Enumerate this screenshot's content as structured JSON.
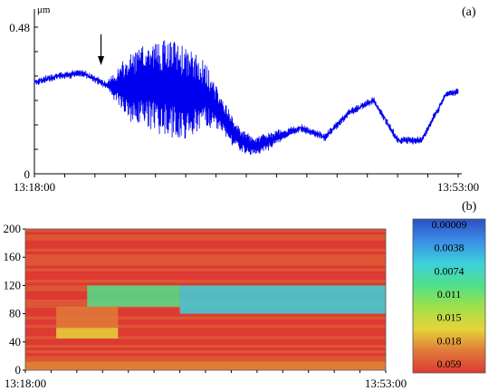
{
  "chart_data": [
    {
      "panel": "(a)",
      "type": "line",
      "ylabel": "μm",
      "yticks": [
        "0",
        "0.48"
      ],
      "ylim": [
        0,
        0.48
      ],
      "xticks": [
        "13:18:00",
        "13:53:00"
      ],
      "arrow_time": "13:23:30",
      "series": [
        {
          "color": "#0000ee",
          "envelope": {
            "t": [
              "13:18:00",
              "13:20:00",
              "13:22:00",
              "13:24:00",
              "13:26:00",
              "13:27:30",
              "13:29:00",
              "13:30:00",
              "13:31:00",
              "13:32:00",
              "13:33:00",
              "13:34:00",
              "13:35:00",
              "13:36:00",
              "13:37:00",
              "13:38:00",
              "13:40:00",
              "13:42:00",
              "13:44:00",
              "13:46:00",
              "13:48:00",
              "13:50:00",
              "13:52:00",
              "13:53:00"
            ],
            "center": [
              0.3,
              0.32,
              0.33,
              0.29,
              0.28,
              0.29,
              0.28,
              0.27,
              0.26,
              0.26,
              0.22,
              0.16,
              0.11,
              0.09,
              0.1,
              0.12,
              0.15,
              0.12,
              0.2,
              0.24,
              0.11,
              0.11,
              0.26,
              0.27
            ],
            "amplitude": [
              0.01,
              0.01,
              0.01,
              0.01,
              0.12,
              0.14,
              0.16,
              0.16,
              0.14,
              0.11,
              0.07,
              0.05,
              0.04,
              0.03,
              0.03,
              0.02,
              0.01,
              0.01,
              0.01,
              0.01,
              0.01,
              0.01,
              0.01,
              0.01
            ]
          }
        }
      ]
    },
    {
      "panel": "(b)",
      "type": "heatmap",
      "yticks": [
        "0",
        "40",
        "80",
        "120",
        "160",
        "200"
      ],
      "ylim": [
        0,
        200
      ],
      "xticks": [
        "13:18:00",
        "13:53:00"
      ],
      "colorbar": {
        "labels": [
          "0.00009",
          "0.0038",
          "0.0074",
          "0.011",
          "0.015",
          "0.018",
          "0.059"
        ],
        "colors": [
          "#2c4fc4",
          "#3a8ee6",
          "#3dd0dc",
          "#4fe08a",
          "#9ee04a",
          "#e6d43a",
          "#e07a3a",
          "#dc3a32"
        ]
      },
      "regions": [
        {
          "level": 0.059,
          "freq_range": [
            60,
            90
          ],
          "time_range": [
            "13:21:00",
            "13:27:00"
          ]
        },
        {
          "level": 0.018,
          "freq_range": [
            45,
            60
          ],
          "time_range": [
            "13:21:00",
            "13:27:00"
          ]
        },
        {
          "level": 0.011,
          "freq_range": [
            90,
            120
          ],
          "time_range": [
            "13:24:00",
            "13:33:00"
          ]
        },
        {
          "level": 0.0074,
          "freq_range": [
            80,
            120
          ],
          "time_range": [
            "13:33:00",
            "13:53:00"
          ]
        }
      ]
    }
  ],
  "labels": {
    "panel_a": "(a)",
    "panel_b": "(b)"
  }
}
